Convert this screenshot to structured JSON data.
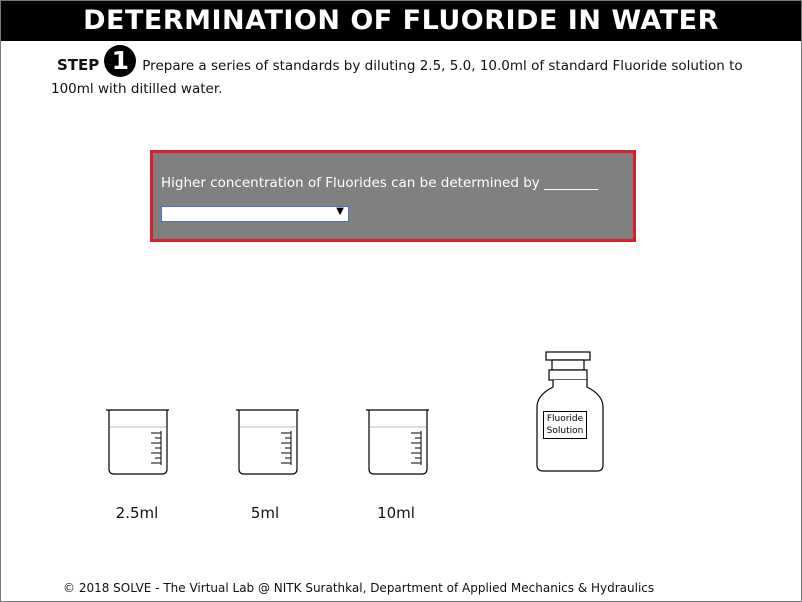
{
  "header": {
    "title": "DETERMINATION OF FLUORIDE IN WATER"
  },
  "step": {
    "label": "STEP",
    "number": "1",
    "instruction": "Prepare a series of standards by diluting 2.5, 5.0, 10.0ml of standard Fluoride solution to 100ml with ditilled water."
  },
  "question": {
    "text": "Higher concentration of Fluorides can be determined by ________",
    "dropdown_value": ""
  },
  "apparatus": {
    "beakers": [
      {
        "label": "2.5ml"
      },
      {
        "label": "5ml"
      },
      {
        "label": "10ml"
      }
    ],
    "bottle": {
      "label_line1": "Fluoride",
      "label_line2": "Solution"
    }
  },
  "footer": {
    "text": "© 2018 SOLVE - The Virtual Lab @ NITK Surathkal, Department of Applied Mechanics & Hydraulics"
  },
  "colors": {
    "header_bg": "#000000",
    "question_bg": "#808080",
    "question_border": "#d81f2a"
  }
}
